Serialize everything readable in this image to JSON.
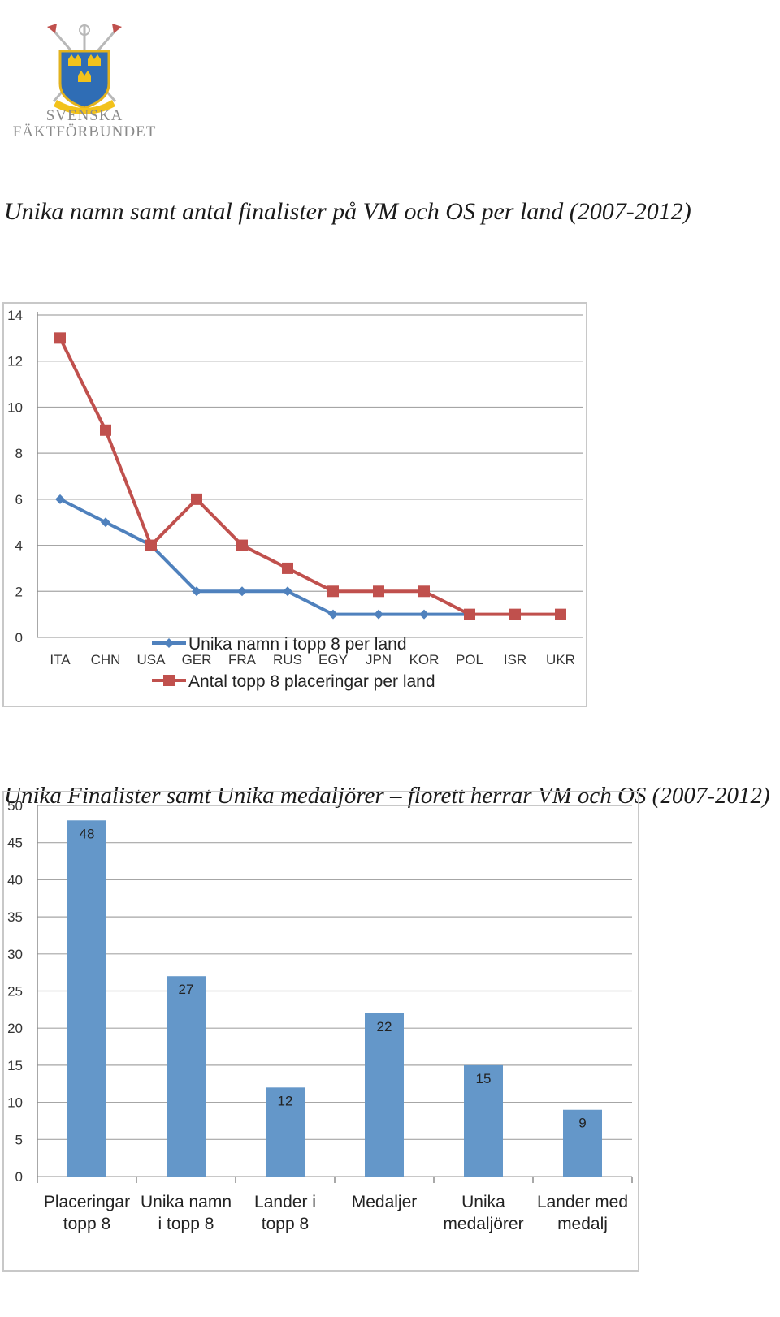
{
  "logo": {
    "line1": "SVENSKA",
    "line2": "FÄKTFÖRBUNDET",
    "icon": "fencing-crest-icon"
  },
  "chart_data": [
    {
      "type": "line",
      "title": "Unika namn samt antal finalister på VM och OS per land (2007-2012)",
      "categories": [
        "ITA",
        "CHN",
        "USA",
        "GER",
        "FRA",
        "RUS",
        "EGY",
        "JPN",
        "KOR",
        "POL",
        "ISR",
        "UKR"
      ],
      "series": [
        {
          "name": "Unika namn i topp 8 per land",
          "color": "#4f81bd",
          "marker": "diamond",
          "values": [
            6,
            5,
            4,
            2,
            2,
            2,
            1,
            1,
            1,
            1,
            null,
            null
          ]
        },
        {
          "name": "Antal topp 8 placeringar per land",
          "color": "#c0504d",
          "marker": "square",
          "values": [
            13,
            9,
            4,
            6,
            4,
            3,
            2,
            2,
            2,
            1,
            1,
            1
          ]
        }
      ],
      "ylim": [
        0,
        14
      ],
      "yticks": [
        0,
        2,
        4,
        6,
        8,
        10,
        12,
        14
      ],
      "grid": true,
      "legend": "bottom"
    },
    {
      "type": "bar",
      "title": "Unika Finalister samt Unika medaljörer – florett herrar VM och OS (2007-2012)",
      "categories": [
        [
          "Placeringar",
          "topp 8"
        ],
        [
          "Unika namn",
          "i topp 8"
        ],
        [
          "Lander i",
          "topp 8"
        ],
        [
          "Medaljer"
        ],
        [
          "Unika",
          "medaljörer"
        ],
        [
          "Lander med",
          "medalj"
        ]
      ],
      "values": [
        48,
        27,
        12,
        22,
        15,
        9
      ],
      "color": "#6497c9",
      "ylim": [
        0,
        50
      ],
      "yticks": [
        0,
        5,
        10,
        15,
        20,
        25,
        30,
        35,
        40,
        45,
        50
      ],
      "grid": true,
      "data_labels": true
    }
  ]
}
